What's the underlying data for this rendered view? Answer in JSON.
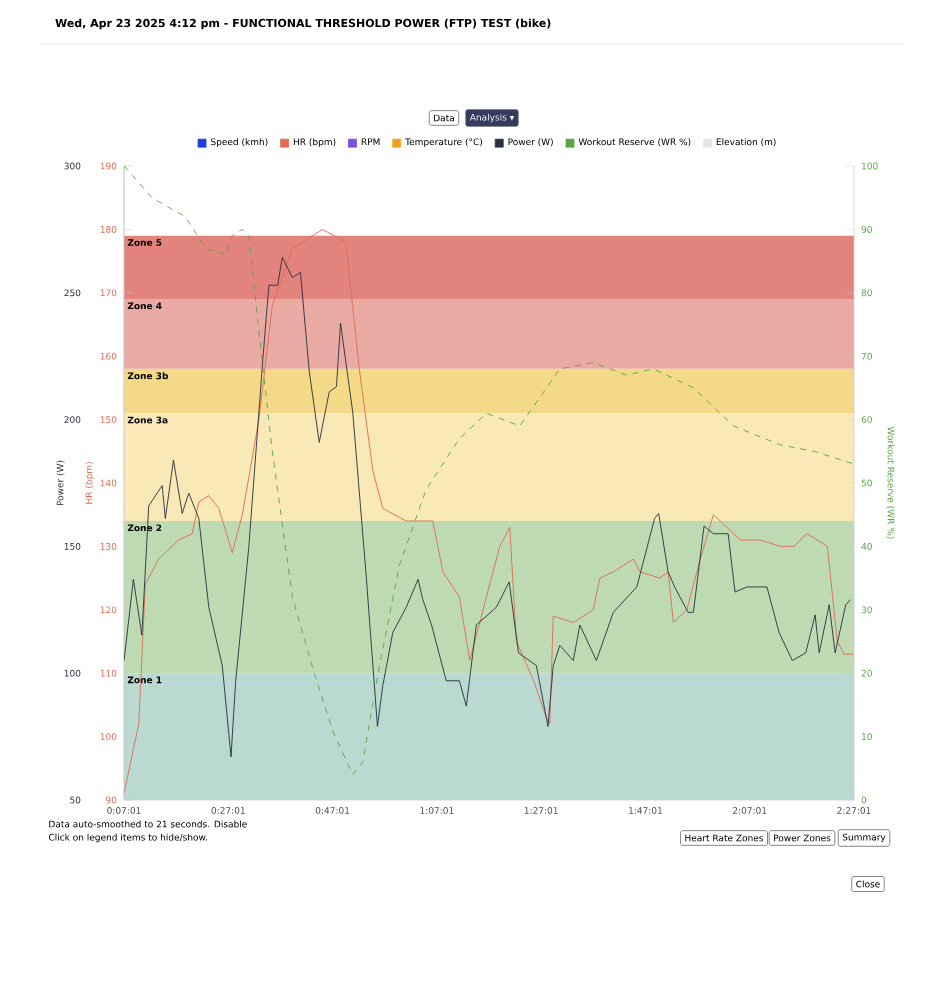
{
  "chart_data": {
    "type": "line",
    "title": "Wed, Apr 23 2025 4:12 pm - FUNCTIONAL THRESHOLD POWER (FTP) TEST (bike)",
    "ylabel": "HR (bpm)",
    "y2label": "Workout Reserve (WR %)",
    "y3label": "Power (W)",
    "xlim": [
      0.1169,
      2.4503
    ],
    "xticks": [
      {
        "value": 0.1169,
        "label": "0:07:01"
      },
      {
        "value": 0.4503,
        "label": "0:27:01"
      },
      {
        "value": 0.7836,
        "label": "0:47:01"
      },
      {
        "value": 1.1169,
        "label": "1:07:01"
      },
      {
        "value": 1.4503,
        "label": "1:27:01"
      },
      {
        "value": 1.7836,
        "label": "1:47:01"
      },
      {
        "value": 2.1169,
        "label": "2:07:01"
      },
      {
        "value": 2.4503,
        "label": "2:27:01"
      }
    ],
    "ylim": [
      90,
      190
    ],
    "yticks": [
      90,
      100,
      110,
      120,
      130,
      140,
      150,
      160,
      170,
      180,
      190
    ],
    "y2lim": [
      0,
      100
    ],
    "y2ticks": [
      0,
      10,
      20,
      30,
      40,
      50,
      60,
      70,
      80,
      90,
      100
    ],
    "y3lim": [
      50,
      300
    ],
    "y3ticks": [
      50,
      100,
      150,
      200,
      250,
      300
    ],
    "legend": "top",
    "marker": "none",
    "series": [
      {
        "name": "Speed (kmh)",
        "color": "#2040d8"
      },
      {
        "name": "HR (bpm)",
        "color": "#e06a55",
        "axis": "y",
        "line_style": "solid",
        "x": [
          0.117,
          0.164,
          0.185,
          0.228,
          0.292,
          0.335,
          0.356,
          0.388,
          0.42,
          0.463,
          0.495,
          0.548,
          0.591,
          0.655,
          0.751,
          0.826,
          0.869,
          0.912,
          0.944,
          1.019,
          1.104,
          1.136,
          1.189,
          1.222,
          1.254,
          1.318,
          1.35,
          1.371,
          1.425,
          1.467,
          1.478,
          1.489,
          1.553,
          1.617,
          1.638,
          1.681,
          1.745,
          1.766,
          1.83,
          1.856,
          1.873,
          1.916,
          1.959,
          2.001,
          2.044,
          2.087,
          2.151,
          2.215,
          2.258,
          2.3,
          2.365,
          2.397,
          2.418,
          2.45
        ],
        "values": [
          91,
          102,
          124,
          128,
          131,
          132,
          137,
          138,
          136,
          129,
          135,
          150,
          168,
          177,
          180,
          178,
          158,
          142,
          136,
          134,
          134,
          126,
          122,
          112,
          118,
          130,
          133,
          115,
          109,
          103,
          102,
          119,
          118,
          120,
          125,
          126,
          128,
          126,
          125,
          126,
          118,
          120,
          128,
          135,
          133,
          131,
          131,
          130,
          130,
          132,
          130,
          115,
          113,
          113
        ]
      },
      {
        "name": "RPM",
        "color": "#7b4fe0"
      },
      {
        "name": "Temperature (°C)",
        "color": "#f0a020"
      },
      {
        "name": "Power (W)",
        "color": "#27303d",
        "axis": "y3",
        "line_style": "solid",
        "x": [
          0.117,
          0.147,
          0.174,
          0.196,
          0.239,
          0.249,
          0.275,
          0.303,
          0.324,
          0.356,
          0.388,
          0.431,
          0.459,
          0.474,
          0.516,
          0.559,
          0.58,
          0.608,
          0.623,
          0.655,
          0.681,
          0.709,
          0.741,
          0.773,
          0.796,
          0.809,
          0.848,
          0.89,
          0.927,
          0.944,
          0.976,
          1.019,
          1.057,
          1.072,
          1.1,
          1.147,
          1.189,
          1.211,
          1.243,
          1.307,
          1.348,
          1.378,
          1.435,
          1.472,
          1.489,
          1.51,
          1.553,
          1.574,
          1.627,
          1.681,
          1.756,
          1.813,
          1.826,
          1.856,
          1.877,
          1.92,
          1.937,
          1.971,
          2.001,
          2.048,
          2.07,
          2.108,
          2.172,
          2.211,
          2.253,
          2.296,
          2.326,
          2.339,
          2.371,
          2.39,
          2.424,
          2.439
        ],
        "values": [
          105,
          137,
          115,
          166,
          174,
          161,
          184,
          163,
          171,
          161,
          126,
          103,
          67,
          97,
          150,
          221,
          253,
          253,
          264,
          256,
          258,
          219,
          191,
          211,
          213,
          238,
          203,
          140,
          79,
          95,
          116,
          126,
          137,
          129,
          119,
          97,
          97,
          87,
          119,
          126,
          136,
          108,
          103,
          79,
          103,
          111,
          105,
          119,
          105,
          124,
          134,
          161,
          163,
          140,
          134,
          124,
          124,
          158,
          155,
          155,
          132,
          134,
          134,
          116,
          105,
          108,
          123,
          108,
          127,
          108,
          127,
          129
        ]
      },
      {
        "name": "Workout Reserve (WR %)",
        "color": "#5aa445",
        "axis": "y2",
        "line_style": "dashed",
        "x": [
          0.117,
          0.206,
          0.313,
          0.377,
          0.442,
          0.463,
          0.495,
          0.516,
          0.548,
          0.591,
          0.655,
          0.719,
          0.783,
          0.848,
          0.88,
          0.933,
          0.997,
          1.083,
          1.189,
          1.275,
          1.382,
          1.51,
          1.617,
          1.723,
          1.809,
          1.937,
          2.065,
          2.215,
          2.322,
          2.45
        ],
        "values": [
          100,
          95,
          92,
          87,
          86,
          89,
          90,
          89,
          74,
          55,
          32,
          21,
          11,
          4,
          6,
          21,
          37,
          49,
          57,
          61,
          59,
          68,
          69,
          67,
          68,
          65,
          59,
          56,
          55,
          53
        ]
      },
      {
        "name": "Elevation (m)",
        "color": "#e4e4e4"
      }
    ],
    "bands": [
      {
        "axis": "y",
        "from": 90,
        "to": 110,
        "label": "Zone 1",
        "color": "#b9d9d1"
      },
      {
        "axis": "y",
        "from": 110,
        "to": 134,
        "label": "Zone 2",
        "color": "#bedab2"
      },
      {
        "axis": "y",
        "from": 134,
        "to": 151,
        "label": "Zone 3a",
        "color": "#f8e9b6"
      },
      {
        "axis": "y",
        "from": 151,
        "to": 158,
        "label": "Zone 3b",
        "color": "#f4da88"
      },
      {
        "axis": "y",
        "from": 158,
        "to": 169,
        "label": "Zone 4",
        "color": "#eaaaa4"
      },
      {
        "axis": "y",
        "from": 169,
        "to": 179,
        "label": "Zone 5",
        "color": "#e3837e"
      }
    ],
    "annotations": [
      "Data",
      "Analysis ▾",
      "Data auto-smoothed to 21 seconds. Disable",
      "Click on legend items to hide/show.",
      "Heart Rate Zones",
      "Power Zones",
      "Summary",
      "Close"
    ]
  }
}
